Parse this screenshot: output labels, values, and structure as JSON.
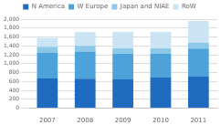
{
  "chart_data": {
    "type": "bar",
    "categories": [
      "2007",
      "2008",
      "2009",
      "2010",
      "2011"
    ],
    "series": [
      {
        "name": "N America",
        "color": "#1e6bbf",
        "values": [
          670,
          665,
          645,
          690,
          710
        ]
      },
      {
        "name": "W Europe",
        "color": "#4da3d9",
        "values": [
          580,
          610,
          580,
          530,
          630
        ]
      },
      {
        "name": "Japan and NIAE",
        "color": "#8dc8e8",
        "values": [
          130,
          125,
          120,
          125,
          130
        ]
      },
      {
        "name": "RoW",
        "color": "#cce5f5",
        "values": [
          200,
          310,
          370,
          370,
          490
        ]
      }
    ],
    "stacked": true,
    "ylim": [
      0,
      2000
    ],
    "yticks": [
      0,
      200,
      400,
      600,
      800,
      {
        "value": 1000,
        "label": "1,000"
      },
      {
        "value": 1200,
        "label": "1,200"
      },
      {
        "value": 1400,
        "label": "1,400"
      },
      {
        "value": 1600,
        "label": "1,600"
      },
      {
        "value": 1800,
        "label": "1,800"
      },
      {
        "value": 2000,
        "label": "2,000"
      }
    ],
    "grid": true,
    "legend": "top"
  }
}
